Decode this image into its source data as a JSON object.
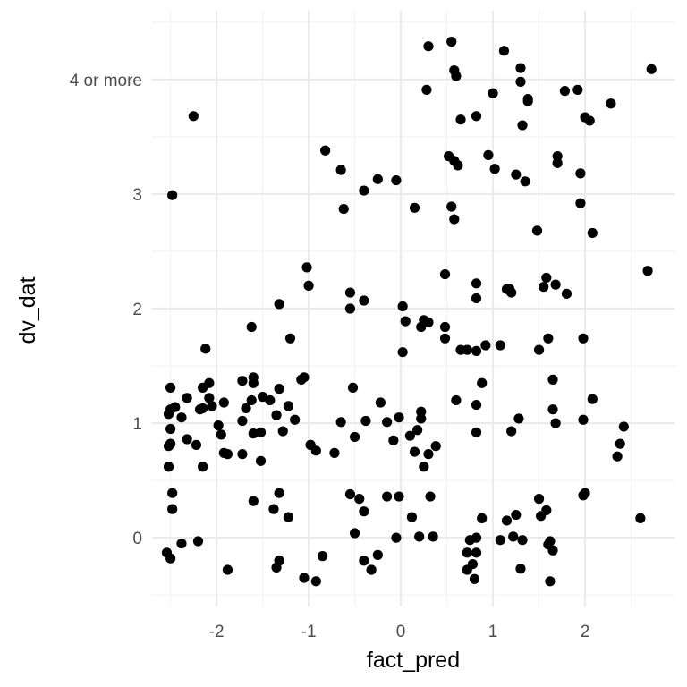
{
  "chart_data": {
    "type": "scatter",
    "title": "",
    "xlabel": "fact_pred",
    "ylabel": "dv_dat",
    "xlim": [
      -2.7,
      2.98
    ],
    "ylim": [
      -0.6,
      4.6
    ],
    "x_ticks": [
      {
        "value": -2,
        "label": "-2"
      },
      {
        "value": -1,
        "label": "-1"
      },
      {
        "value": 0,
        "label": "0"
      },
      {
        "value": 1,
        "label": "1"
      },
      {
        "value": 2,
        "label": "2"
      }
    ],
    "y_ticks": [
      {
        "value": 0,
        "label": "0"
      },
      {
        "value": 1,
        "label": "1"
      },
      {
        "value": 2,
        "label": "2"
      },
      {
        "value": 3,
        "label": "3"
      },
      {
        "value": 4,
        "label": "4 or more"
      }
    ],
    "grid": true,
    "legend": "none",
    "point_color": "#000000",
    "points": [
      [
        -2.5,
        1.31
      ],
      [
        -2.52,
        1.08
      ],
      [
        -2.5,
        1.12
      ],
      [
        -2.45,
        1.14
      ],
      [
        -2.5,
        0.95
      ],
      [
        -2.5,
        0.82
      ],
      [
        -2.52,
        0.8
      ],
      [
        -2.52,
        0.62
      ],
      [
        -2.48,
        0.39
      ],
      [
        -2.48,
        0.25
      ],
      [
        -2.54,
        -0.13
      ],
      [
        -2.5,
        -0.18
      ],
      [
        -2.38,
        -0.05
      ],
      [
        -2.2,
        -0.03
      ],
      [
        -2.48,
        2.99
      ],
      [
        -2.25,
        3.68
      ],
      [
        -2.38,
        1.05
      ],
      [
        -2.32,
        1.22
      ],
      [
        -2.32,
        0.86
      ],
      [
        -2.22,
        0.81
      ],
      [
        -2.18,
        1.12
      ],
      [
        -2.15,
        1.13
      ],
      [
        -2.15,
        1.31
      ],
      [
        -2.12,
        1.65
      ],
      [
        -2.08,
        1.35
      ],
      [
        -2.08,
        1.22
      ],
      [
        -2.05,
        1.15
      ],
      [
        -2.15,
        0.62
      ],
      [
        -1.98,
        0.98
      ],
      [
        -1.95,
        0.9
      ],
      [
        -1.92,
        1.18
      ],
      [
        -1.92,
        0.74
      ],
      [
        -1.88,
        0.73
      ],
      [
        -1.88,
        -0.28
      ],
      [
        -1.72,
        1.37
      ],
      [
        -1.72,
        1.02
      ],
      [
        -1.72,
        0.73
      ],
      [
        -1.68,
        1.13
      ],
      [
        -1.62,
        1.2
      ],
      [
        -1.6,
        1.35
      ],
      [
        -1.6,
        1.4
      ],
      [
        -1.6,
        0.91
      ],
      [
        -1.62,
        1.84
      ],
      [
        -1.6,
        0.32
      ],
      [
        -1.52,
        0.92
      ],
      [
        -1.52,
        0.67
      ],
      [
        -1.5,
        1.23
      ],
      [
        -1.42,
        1.2
      ],
      [
        -1.38,
        0.25
      ],
      [
        -1.35,
        1.07
      ],
      [
        -1.32,
        2.04
      ],
      [
        -1.32,
        0.39
      ],
      [
        -1.32,
        1.3
      ],
      [
        -1.28,
        0.93
      ],
      [
        -1.32,
        -0.2
      ],
      [
        -1.35,
        -0.26
      ],
      [
        -1.22,
        1.15
      ],
      [
        -1.22,
        0.18
      ],
      [
        -1.2,
        1.74
      ],
      [
        -1.15,
        1.03
      ],
      [
        -1.08,
        1.38
      ],
      [
        -1.05,
        1.4
      ],
      [
        -1.02,
        2.36
      ],
      [
        -1.0,
        2.2
      ],
      [
        -1.05,
        -0.35
      ],
      [
        -0.98,
        0.81
      ],
      [
        -0.92,
        0.76
      ],
      [
        -0.92,
        -0.38
      ],
      [
        -0.82,
        3.38
      ],
      [
        -0.85,
        -0.16
      ],
      [
        -0.98,
        0.81
      ],
      [
        -0.72,
        0.74
      ],
      [
        -0.65,
        3.21
      ],
      [
        -0.62,
        2.87
      ],
      [
        -0.65,
        1.01
      ],
      [
        -0.55,
        2.14
      ],
      [
        -0.55,
        2.0
      ],
      [
        -0.52,
        1.31
      ],
      [
        -0.55,
        0.38
      ],
      [
        -0.5,
        0.88
      ],
      [
        -0.5,
        0.04
      ],
      [
        -0.45,
        0.34
      ],
      [
        -0.4,
        3.03
      ],
      [
        -0.4,
        2.07
      ],
      [
        -0.4,
        0.23
      ],
      [
        -0.4,
        -0.2
      ],
      [
        -0.38,
        1.02
      ],
      [
        -0.32,
        -0.28
      ],
      [
        -0.25,
        3.13
      ],
      [
        -0.22,
        1.18
      ],
      [
        -0.25,
        -0.15
      ],
      [
        -0.15,
        1.01
      ],
      [
        -0.15,
        0.36
      ],
      [
        -0.08,
        0.85
      ],
      [
        -0.05,
        3.12
      ],
      [
        -0.02,
        1.05
      ],
      [
        -0.02,
        0.36
      ],
      [
        -0.05,
        0.0
      ],
      [
        0.02,
        2.02
      ],
      [
        0.02,
        1.62
      ],
      [
        0.05,
        1.89
      ],
      [
        0.1,
        0.89
      ],
      [
        0.12,
        0.18
      ],
      [
        0.15,
        2.88
      ],
      [
        0.18,
        0.94
      ],
      [
        0.2,
        0.01
      ],
      [
        0.15,
        0.75
      ],
      [
        0.22,
        1.04
      ],
      [
        0.22,
        1.1
      ],
      [
        0.22,
        1.84
      ],
      [
        0.25,
        0.62
      ],
      [
        0.25,
        1.9
      ],
      [
        0.28,
        3.91
      ],
      [
        0.3,
        4.29
      ],
      [
        0.3,
        1.88
      ],
      [
        0.3,
        0.73
      ],
      [
        0.32,
        0.36
      ],
      [
        0.35,
        0.01
      ],
      [
        0.38,
        0.8
      ],
      [
        0.48,
        1.84
      ],
      [
        0.48,
        1.74
      ],
      [
        0.48,
        2.3
      ],
      [
        0.52,
        3.33
      ],
      [
        0.55,
        2.89
      ],
      [
        0.55,
        4.33
      ],
      [
        0.58,
        4.08
      ],
      [
        0.58,
        3.29
      ],
      [
        0.58,
        2.78
      ],
      [
        0.6,
        4.03
      ],
      [
        0.6,
        1.2
      ],
      [
        0.62,
        3.25
      ],
      [
        0.65,
        3.65
      ],
      [
        0.65,
        1.64
      ],
      [
        0.72,
        1.64
      ],
      [
        0.72,
        -0.28
      ],
      [
        0.72,
        -0.13
      ],
      [
        0.75,
        -0.02
      ],
      [
        0.78,
        -0.23
      ],
      [
        0.82,
        3.68
      ],
      [
        0.82,
        2.22
      ],
      [
        0.82,
        2.09
      ],
      [
        0.82,
        1.63
      ],
      [
        0.8,
        -0.36
      ],
      [
        0.82,
        0.92
      ],
      [
        0.82,
        1.16
      ],
      [
        0.82,
        -0.13
      ],
      [
        0.82,
        0.0
      ],
      [
        0.88,
        1.35
      ],
      [
        0.88,
        0.17
      ],
      [
        0.92,
        1.68
      ],
      [
        0.95,
        3.34
      ],
      [
        1.0,
        3.88
      ],
      [
        1.02,
        3.22
      ],
      [
        1.08,
        1.68
      ],
      [
        1.08,
        -0.02
      ],
      [
        1.12,
        4.25
      ],
      [
        1.15,
        0.15
      ],
      [
        1.15,
        2.17
      ],
      [
        1.18,
        2.17
      ],
      [
        1.2,
        2.14
      ],
      [
        1.2,
        0.93
      ],
      [
        1.22,
        0.01
      ],
      [
        1.25,
        3.17
      ],
      [
        1.25,
        0.2
      ],
      [
        1.28,
        1.04
      ],
      [
        1.3,
        4.1
      ],
      [
        1.3,
        -0.27
      ],
      [
        1.3,
        3.98
      ],
      [
        1.32,
        3.6
      ],
      [
        1.32,
        -0.02
      ],
      [
        1.35,
        3.11
      ],
      [
        1.38,
        3.83
      ],
      [
        1.38,
        3.81
      ],
      [
        1.48,
        2.68
      ],
      [
        1.5,
        1.64
      ],
      [
        1.5,
        0.34
      ],
      [
        1.52,
        0.19
      ],
      [
        1.55,
        2.19
      ],
      [
        1.58,
        2.27
      ],
      [
        1.58,
        0.24
      ],
      [
        1.6,
        1.74
      ],
      [
        1.6,
        -0.06
      ],
      [
        1.62,
        -0.38
      ],
      [
        1.62,
        -0.03
      ],
      [
        1.65,
        -0.11
      ],
      [
        1.65,
        1.38
      ],
      [
        1.65,
        1.12
      ],
      [
        1.68,
        1.0
      ],
      [
        1.68,
        2.21
      ],
      [
        1.7,
        3.27
      ],
      [
        1.7,
        3.33
      ],
      [
        1.78,
        3.9
      ],
      [
        1.8,
        2.13
      ],
      [
        1.92,
        3.91
      ],
      [
        1.95,
        3.18
      ],
      [
        1.95,
        2.92
      ],
      [
        1.98,
        1.74
      ],
      [
        1.98,
        0.37
      ],
      [
        1.98,
        1.03
      ],
      [
        2.0,
        0.39
      ],
      [
        2.0,
        3.67
      ],
      [
        2.05,
        3.64
      ],
      [
        2.08,
        2.66
      ],
      [
        2.08,
        1.21
      ],
      [
        2.28,
        3.79
      ],
      [
        2.35,
        0.71
      ],
      [
        2.38,
        0.82
      ],
      [
        2.42,
        0.97
      ],
      [
        2.6,
        0.17
      ],
      [
        2.68,
        2.33
      ],
      [
        2.72,
        4.09
      ]
    ]
  }
}
